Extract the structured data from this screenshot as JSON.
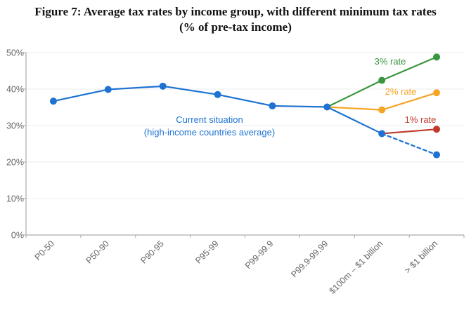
{
  "chart_data": {
    "type": "line",
    "title": "Figure 7: Average tax rates by income group, with different minimum tax rates",
    "subtitle": "(% of pre-tax income)",
    "xlabel": "",
    "ylabel": "",
    "ylim": [
      0,
      50
    ],
    "yticks": [
      0,
      10,
      20,
      30,
      40,
      50
    ],
    "ytick_labels": [
      "0%",
      "10%",
      "20%",
      "30%",
      "40%",
      "50%"
    ],
    "grid": true,
    "categories": [
      "P0-50",
      "P50-90",
      "P90-95",
      "P95-99",
      "P99-99.9",
      "P99.9-99.99",
      "$100m – $1 billion",
      "> $1 billion"
    ],
    "series": [
      {
        "name": "Current situation (high-income countries average)",
        "color": "#1e73d2",
        "values": [
          36.7,
          39.9,
          40.8,
          38.5,
          35.4,
          35.1,
          27.8,
          22.0
        ],
        "dashed_from_index": 6
      },
      {
        "name": "3% rate",
        "color": "#3a963e",
        "values": [
          null,
          null,
          null,
          null,
          null,
          35.1,
          42.4,
          48.8
        ]
      },
      {
        "name": "2% rate",
        "color": "#f5a524",
        "values": [
          null,
          null,
          null,
          null,
          null,
          35.1,
          34.3,
          39.0
        ]
      },
      {
        "name": "1% rate",
        "color": "#c0392b",
        "values": [
          null,
          null,
          null,
          null,
          null,
          null,
          27.8,
          29.0
        ]
      }
    ],
    "annotations": [
      {
        "text": "Current situation",
        "series": 0,
        "color": "#1e73d2"
      },
      {
        "text": "(high-income countries average)",
        "series": 0,
        "color": "#1e73d2"
      },
      {
        "text": "3% rate",
        "series": 1,
        "color": "#3a963e"
      },
      {
        "text": "2% rate",
        "series": 2,
        "color": "#f5a524"
      },
      {
        "text": "1% rate",
        "series": 3,
        "color": "#c0392b"
      }
    ],
    "legend": "none (inline annotations)"
  }
}
